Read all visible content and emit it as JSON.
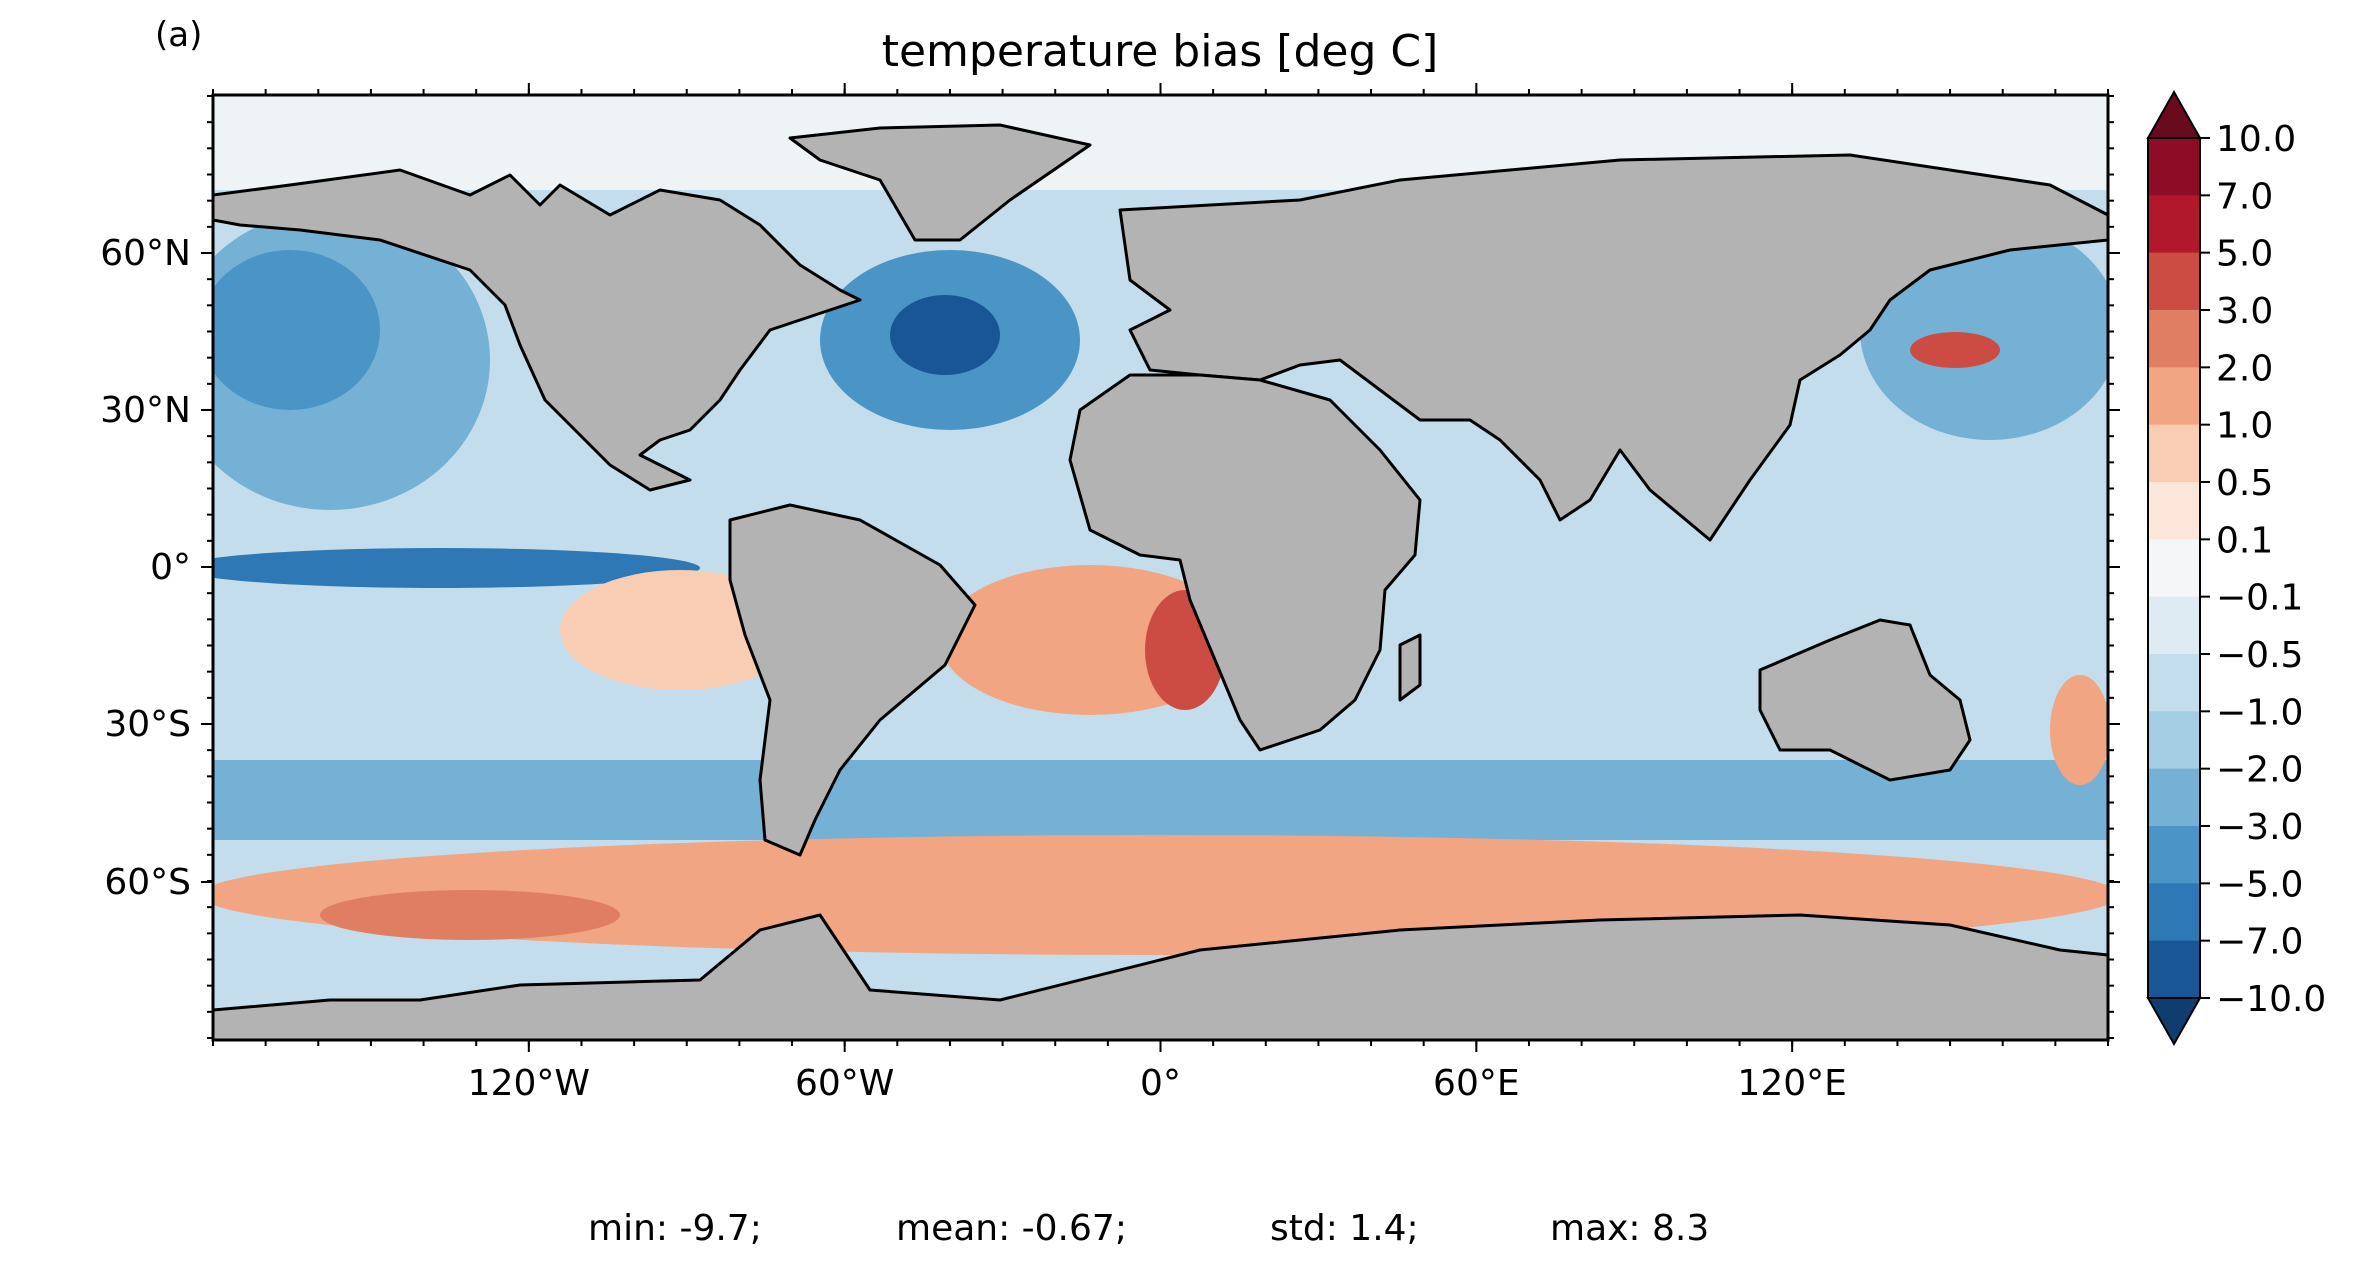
{
  "panel_label": "(a)",
  "title": "temperature bias [deg C]",
  "map": {
    "lon_ticks": [
      "120°W",
      "60°W",
      "0°",
      "60°E",
      "120°E"
    ],
    "lat_ticks": [
      "60°N",
      "30°N",
      "0°",
      "30°S",
      "60°S"
    ],
    "land_color": "#b3b3b3",
    "coastline_color": "#000000"
  },
  "colorbar": {
    "labels": [
      "10.0",
      "7.0",
      "5.0",
      "3.0",
      "2.0",
      "1.0",
      "0.5",
      "0.1",
      "−0.1",
      "−0.5",
      "−1.0",
      "−2.0",
      "−3.0",
      "−5.0",
      "−7.0",
      "−10.0"
    ],
    "colors": [
      "#8c0d25",
      "#b2182b",
      "#cc4c44",
      "#e07e64",
      "#f1a583",
      "#f9cdb4",
      "#fbe6d9",
      "#f5f6f7",
      "#deebf2",
      "#c3ddec",
      "#a2cde3",
      "#75b1d4",
      "#4a95c6",
      "#2e78b5",
      "#195695"
    ],
    "over_color": "#6a0a1f",
    "under_color": "#0f3e6e"
  },
  "stats": {
    "min": "min: -9.7;",
    "mean": "mean: -0.67;",
    "std": "std: 1.4;",
    "max": "max: 8.3"
  }
}
